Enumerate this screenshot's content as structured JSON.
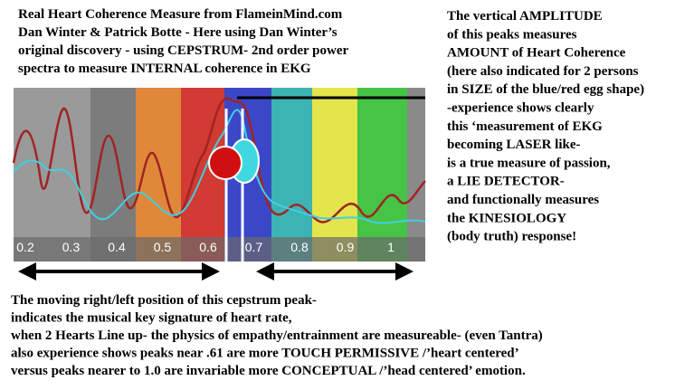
{
  "header": {
    "lines": [
      "Real Heart Coherence Measure from FlameinMind.com",
      "Dan Winter & Patrick Botte - Here using Dan Winter’s",
      "original discovery - using CEPSTRUM- 2nd order power",
      "spectra to measure INTERNAL coherence in EKG"
    ]
  },
  "right_note": {
    "lines": [
      "The vertical AMPLITUDE",
      "of this peaks measures",
      "AMOUNT of Heart Coherence",
      "(here also indicated for 2 persons",
      "in SIZE of the blue/red egg shape)",
      "-experience shows clearly",
      "this ‘measurement of EKG",
      "becoming LASER like-",
      "is a true measure of passion,",
      "a LIE DETECTOR-",
      "and functionally measures",
      "the KINESIOLOGY",
      "(body truth) response!"
    ]
  },
  "bottom_note": {
    "lines": [
      "The moving right/left position of this cepstrum peak-",
      "indicates the musical key signature of heart rate,",
      "when 2 Hearts Line up- the physics of empathy/entrainment are measureable- (even Tantra)",
      "also experience shows peaks near .61 are more TOUCH PERMISSIVE /’heart centered’",
      "versus peaks nearer to 1.0 are invariable more CONCEPTUAL /’head centered’ emotion."
    ]
  },
  "axis": {
    "labels": [
      "0.2",
      "0.3",
      "0.4",
      "0.5",
      "0.6",
      "0.7",
      "0.8",
      "0.9",
      "1"
    ]
  }
}
